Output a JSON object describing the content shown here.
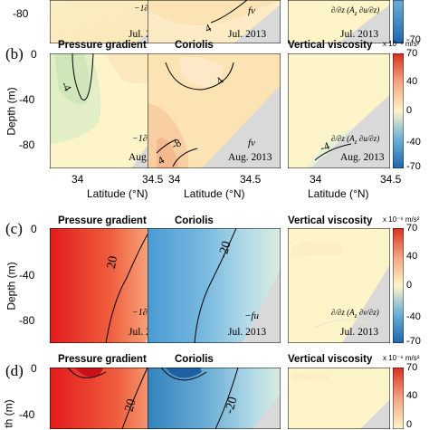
{
  "panels": {
    "b": "(b)",
    "c": "(c)",
    "d": "(d)"
  },
  "titles": {
    "pressure": "Pressure gradient",
    "coriolis": "Coriolis",
    "vertical": "Vertical viscosity"
  },
  "axes": {
    "depth_label": "Depth (m)",
    "depth_label_cut": "th (m)",
    "latitude_label": "Latitude (°N)",
    "lat_ticks": [
      "34",
      "34.5"
    ],
    "depth_ticks": [
      "0",
      "-40",
      "-80"
    ]
  },
  "colorbar": {
    "unit": "x 10⁻⁶ m/s²",
    "ticks": [
      "70",
      "40",
      "0",
      "-40",
      "-70"
    ],
    "colors": [
      "#2166ac",
      "#6baed6",
      "#fdf5c9",
      "#f4a582",
      "#d7301f"
    ]
  },
  "dates": {
    "jul": "Jul. 2013",
    "aug": "Aug. 2013"
  },
  "terms": {
    "fv": "fv",
    "neg_fu": "−fu"
  },
  "contours": {
    "a_cor": "4",
    "b_pg": "-4",
    "b_cor_top": "4",
    "b_cor_b1": "4",
    "b_cor_b2": "-8",
    "b_vv": "-4",
    "c_pg": "20",
    "c_cor": "-20",
    "d_pg": "20",
    "d_cor": "-20"
  }
}
